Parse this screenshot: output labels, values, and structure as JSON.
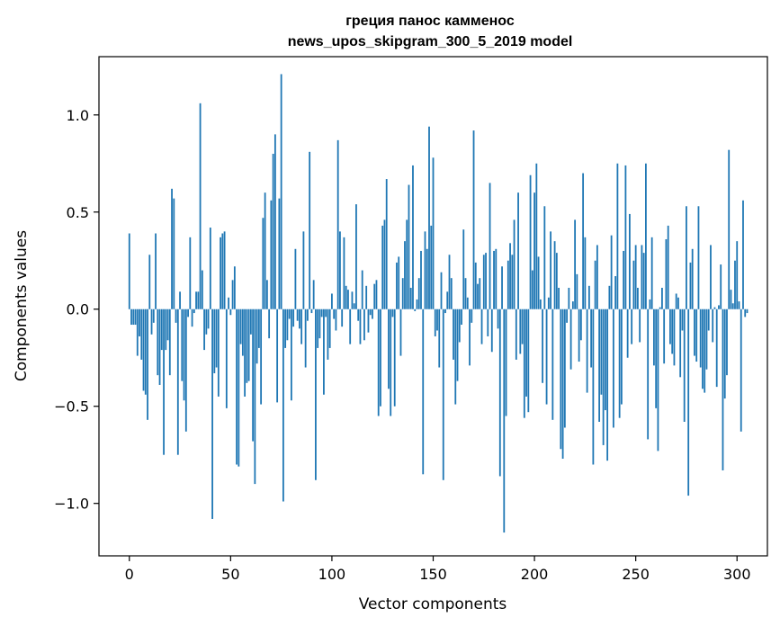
{
  "chart_data": {
    "type": "bar",
    "title_line1": "греция панос камменос",
    "title_line2": "news_upos_skipgram_300_5_2019 model",
    "xlabel": "Vector components",
    "ylabel": "Components values",
    "xlim": [
      -15,
      315
    ],
    "ylim": [
      -1.27,
      1.3
    ],
    "xticks": [
      0,
      50,
      100,
      150,
      200,
      250,
      300
    ],
    "xtick_labels": [
      "0",
      "50",
      "100",
      "150",
      "200",
      "250",
      "300"
    ],
    "yticks": [
      -1.0,
      -0.5,
      0.0,
      0.5,
      1.0
    ],
    "ytick_labels": [
      "−1.0",
      "−0.5",
      "0.0",
      "0.5",
      "1.0"
    ],
    "bar_color": "#1f77b4",
    "grid": false,
    "values": [
      0.39,
      -0.08,
      -0.08,
      -0.08,
      -0.24,
      -0.14,
      -0.26,
      -0.42,
      -0.44,
      -0.57,
      0.28,
      -0.13,
      -0.07,
      0.39,
      -0.34,
      -0.39,
      -0.21,
      -0.75,
      -0.21,
      -0.16,
      -0.34,
      0.62,
      0.57,
      -0.07,
      -0.75,
      0.09,
      -0.37,
      -0.47,
      -0.63,
      -0.04,
      0.37,
      -0.09,
      -0.02,
      0.09,
      0.09,
      1.06,
      0.2,
      -0.21,
      -0.13,
      -0.1,
      0.42,
      -1.08,
      -0.33,
      -0.3,
      -0.45,
      0.37,
      0.39,
      0.4,
      -0.51,
      0.06,
      -0.03,
      0.15,
      0.22,
      -0.8,
      -0.81,
      -0.18,
      -0.24,
      -0.45,
      -0.38,
      -0.37,
      -0.13,
      -0.68,
      -0.9,
      -0.28,
      -0.2,
      -0.49,
      0.47,
      0.6,
      0.15,
      -0.15,
      0.56,
      0.8,
      0.9,
      -0.48,
      0.57,
      1.21,
      -0.99,
      -0.2,
      -0.16,
      -0.05,
      -0.47,
      -0.09,
      0.31,
      -0.06,
      -0.1,
      -0.18,
      0.4,
      -0.3,
      -0.06,
      0.81,
      -0.02,
      0.15,
      -0.88,
      -0.2,
      -0.15,
      -0.04,
      -0.44,
      -0.04,
      -0.26,
      -0.2,
      0.08,
      -0.05,
      -0.11,
      0.87,
      0.4,
      -0.09,
      0.37,
      0.12,
      0.1,
      -0.18,
      0.09,
      0.03,
      0.54,
      -0.06,
      -0.18,
      0.2,
      -0.16,
      0.12,
      -0.12,
      -0.03,
      -0.05,
      0.13,
      0.15,
      -0.55,
      -0.5,
      0.43,
      0.46,
      0.67,
      -0.41,
      -0.55,
      -0.04,
      -0.5,
      0.24,
      0.27,
      -0.24,
      0.16,
      0.35,
      0.46,
      0.64,
      0.11,
      0.74,
      -0.01,
      0.05,
      0.16,
      0.3,
      -0.85,
      0.4,
      0.31,
      0.94,
      0.43,
      0.78,
      -0.14,
      -0.11,
      -0.3,
      0.19,
      -0.88,
      -0.02,
      0.09,
      0.28,
      0.16,
      -0.26,
      -0.49,
      -0.37,
      -0.17,
      -0.08,
      0.41,
      0.16,
      0.06,
      -0.29,
      -0.07,
      0.92,
      0.24,
      0.13,
      0.16,
      -0.18,
      0.28,
      0.29,
      -0.14,
      0.65,
      -0.22,
      0.3,
      0.31,
      -0.1,
      -0.86,
      0.22,
      -1.15,
      -0.55,
      0.25,
      0.34,
      0.28,
      0.46,
      -0.26,
      0.6,
      -0.23,
      -0.18,
      -0.56,
      -0.45,
      -0.53,
      0.69,
      0.2,
      0.6,
      0.75,
      0.27,
      0.05,
      -0.38,
      0.53,
      -0.49,
      0.06,
      0.4,
      -0.57,
      0.35,
      0.29,
      0.11,
      -0.72,
      -0.77,
      -0.61,
      -0.07,
      0.11,
      -0.31,
      0.04,
      0.46,
      0.18,
      -0.27,
      -0.16,
      0.7,
      0.37,
      -0.43,
      0.12,
      -0.3,
      -0.8,
      0.25,
      0.33,
      -0.58,
      -0.44,
      -0.7,
      -0.52,
      -0.78,
      0.12,
      0.38,
      -0.61,
      0.17,
      0.75,
      -0.56,
      -0.49,
      0.3,
      0.74,
      -0.25,
      0.49,
      -0.18,
      0.25,
      0.33,
      0.11,
      -0.17,
      0.33,
      0.29,
      0.75,
      -0.67,
      0.05,
      0.37,
      -0.29,
      -0.51,
      -0.73,
      0.01,
      0.11,
      -0.28,
      0.36,
      0.43,
      -0.18,
      -0.23,
      -0.29,
      0.08,
      0.06,
      -0.35,
      -0.11,
      -0.58,
      0.53,
      -0.96,
      0.24,
      0.31,
      -0.24,
      -0.27,
      0.53,
      -0.3,
      -0.41,
      -0.43,
      -0.31,
      -0.11,
      0.33,
      -0.17,
      0.01,
      -0.4,
      0.02,
      0.23,
      -0.83,
      -0.46,
      -0.34,
      0.82,
      0.1,
      0.03,
      0.25,
      0.35,
      0.04,
      -0.63,
      0.56,
      -0.04,
      -0.02
    ]
  }
}
